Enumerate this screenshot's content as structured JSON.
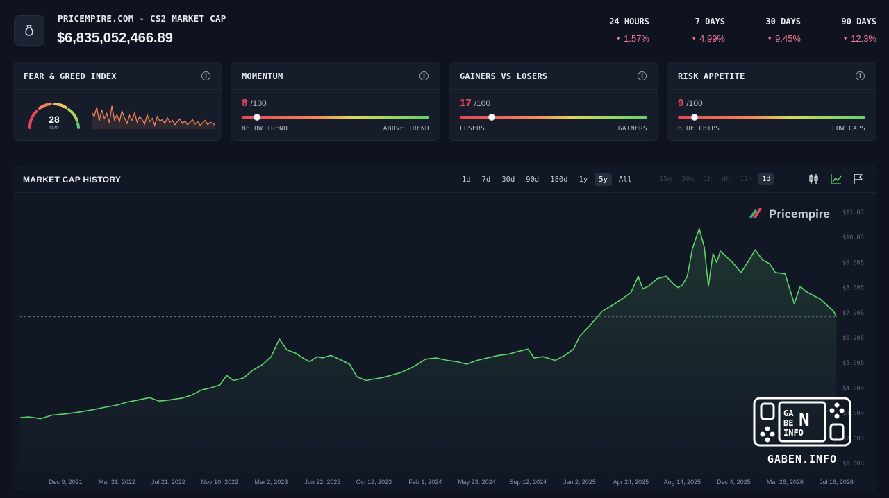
{
  "header": {
    "title": "PRICEMPIRE.COM - CS2 MARKET CAP",
    "market_cap": "$6,835,052,466.89",
    "logo_icon": "money-bag-icon",
    "periods": [
      {
        "label": "24 HOURS",
        "change": "1.57%"
      },
      {
        "label": "7 DAYS",
        "change": "4.99%"
      },
      {
        "label": "30 DAYS",
        "change": "9.45%"
      },
      {
        "label": "90 DAYS",
        "change": "12.3%"
      }
    ],
    "negative_color": "#f07a92"
  },
  "cards": {
    "fear_greed": {
      "title": "FEAR & GREED INDEX",
      "value": "28",
      "label": "FEAR",
      "gauge_fraction": 0.28,
      "sparkline": [
        62,
        55,
        70,
        48,
        66,
        52,
        60,
        45,
        72,
        50,
        58,
        47,
        64,
        53,
        44,
        57,
        49,
        61,
        46,
        55,
        50,
        43,
        58,
        47,
        52,
        41,
        55,
        48,
        50,
        44,
        53,
        46,
        49,
        42,
        47,
        51,
        44,
        48,
        42,
        46,
        50,
        43,
        47,
        41,
        45,
        49,
        42,
        46,
        44,
        41
      ]
    },
    "momentum": {
      "title": "MOMENTUM",
      "value": "8",
      "max": "/100",
      "low": "BELOW TREND",
      "high": "ABOVE TREND"
    },
    "gainers": {
      "title": "GAINERS VS LOSERS",
      "value": "17",
      "max": "/100",
      "low": "LOSERS",
      "high": "GAINERS"
    },
    "risk": {
      "title": "RISK APPETITE",
      "value": "9",
      "max": "/100",
      "low": "BLUE CHIPS",
      "high": "LOW CAPS"
    }
  },
  "panel": {
    "title": "MARKET CAP HISTORY",
    "ranges": [
      "1d",
      "7d",
      "30d",
      "90d",
      "180d",
      "1y",
      "5y",
      "All"
    ],
    "active_range": "5y",
    "intervals": [
      "15m",
      "30m",
      "1h",
      "4h",
      "12h",
      "1d"
    ],
    "active_interval": "1d",
    "brand": "Pricempire",
    "line_color": "#5fd46a"
  },
  "watermark": {
    "text": "GABEN.INFO",
    "logo_letters": [
      "GA",
      "BE",
      "N",
      "INFO"
    ]
  },
  "chart_data": {
    "type": "area",
    "title": "",
    "xlabel": "",
    "ylabel": "",
    "ylim": [
      2.0,
      11.0
    ],
    "y_ticks": [
      "$11.0B",
      "$10.0B",
      "$9.00B",
      "$8.00B",
      "$7.00B",
      "$6.00B",
      "$5.00B",
      "$4.00B",
      "$3.00B",
      "$2.00B",
      "$1.00B"
    ],
    "y_tick_values": [
      11,
      10,
      9,
      8,
      7,
      6,
      5,
      4,
      3,
      2,
      1
    ],
    "x_ticks": [
      "Dec 9, 2021",
      "Mar 31, 2022",
      "Jul 21, 2022",
      "Nov 10, 2022",
      "Mar 2, 2023",
      "Jun 22, 2023",
      "Oct 12, 2023",
      "Feb 1, 2024",
      "May 23, 2024",
      "Sep 12, 2024",
      "Jan 2, 2025",
      "Apr 24, 2025",
      "Aug 14, 2025",
      "Dec 4, 2025",
      "Mar 26, 2026",
      "Jul 16, 2026"
    ],
    "x_tick_values": [
      "2021-12-09",
      "2022-03-31",
      "2022-07-21",
      "2022-11-10",
      "2023-03-02",
      "2023-06-22",
      "2023-10-12",
      "2024-02-01",
      "2024-05-23",
      "2024-09-12",
      "2025-01-02",
      "2025-04-24",
      "2025-08-14",
      "2025-12-04",
      "2026-03-26",
      "2026-07-16"
    ],
    "current_value": 6.84,
    "series": [
      {
        "x": [
          "2021-09-01",
          "2021-09-20",
          "2021-10-15",
          "2021-11-10",
          "2021-12-09",
          "2022-01-10",
          "2022-02-10",
          "2022-03-01",
          "2022-03-31",
          "2022-04-20",
          "2022-05-15",
          "2022-06-10",
          "2022-07-01",
          "2022-07-21",
          "2022-08-20",
          "2022-09-10",
          "2022-10-01",
          "2022-10-20",
          "2022-11-10",
          "2022-11-25",
          "2022-12-10",
          "2023-01-01",
          "2023-01-20",
          "2023-02-10",
          "2023-03-02",
          "2023-03-20",
          "2023-04-05",
          "2023-04-25",
          "2023-05-10",
          "2023-05-25",
          "2023-06-10",
          "2023-06-22",
          "2023-07-10",
          "2023-08-01",
          "2023-08-20",
          "2023-09-05",
          "2023-09-25",
          "2023-10-12",
          "2023-11-01",
          "2023-11-20",
          "2023-12-10",
          "2024-01-01",
          "2024-01-20",
          "2024-02-01",
          "2024-02-25",
          "2024-03-20",
          "2024-04-10",
          "2024-05-01",
          "2024-05-23",
          "2024-06-15",
          "2024-07-10",
          "2024-08-01",
          "2024-08-20",
          "2024-09-12",
          "2024-09-25",
          "2024-10-15",
          "2024-11-10",
          "2024-12-01",
          "2024-12-20",
          "2025-01-02",
          "2025-01-25",
          "2025-02-20",
          "2025-03-15",
          "2025-04-05",
          "2025-04-24",
          "2025-05-10",
          "2025-05-20",
          "2025-06-01",
          "2025-06-20",
          "2025-07-10",
          "2025-07-25",
          "2025-08-05",
          "2025-08-14",
          "2025-08-25",
          "2025-09-05",
          "2025-09-20",
          "2025-10-01",
          "2025-10-10",
          "2025-10-20",
          "2025-10-28",
          "2025-11-05",
          "2025-11-20",
          "2025-12-04",
          "2025-12-20",
          "2026-01-05",
          "2026-01-20",
          "2026-02-05",
          "2026-02-20",
          "2026-03-05",
          "2026-03-26",
          "2026-04-15",
          "2026-04-28",
          "2026-05-10",
          "2026-05-25",
          "2026-06-10",
          "2026-06-25",
          "2026-07-10",
          "2026-07-16"
        ],
        "values": [
          2.82,
          2.85,
          2.78,
          2.92,
          2.97,
          3.05,
          3.15,
          3.22,
          3.32,
          3.43,
          3.52,
          3.62,
          3.48,
          3.52,
          3.6,
          3.72,
          3.92,
          4.0,
          4.12,
          4.5,
          4.3,
          4.4,
          4.7,
          4.92,
          5.25,
          5.95,
          5.52,
          5.38,
          5.2,
          5.05,
          5.25,
          5.2,
          5.3,
          5.12,
          4.95,
          4.45,
          4.3,
          4.36,
          4.42,
          4.52,
          4.62,
          4.8,
          5.0,
          5.15,
          5.2,
          5.1,
          5.05,
          4.95,
          5.1,
          5.2,
          5.3,
          5.35,
          5.45,
          5.55,
          5.2,
          5.25,
          5.1,
          5.3,
          5.55,
          6.05,
          6.5,
          7.05,
          7.3,
          7.55,
          7.8,
          8.45,
          7.95,
          8.05,
          8.35,
          8.45,
          8.15,
          8.0,
          8.1,
          8.45,
          9.55,
          10.35,
          9.6,
          8.05,
          9.35,
          9.0,
          9.45,
          9.2,
          8.95,
          8.6,
          9.05,
          9.5,
          9.1,
          8.95,
          8.6,
          8.55,
          7.35,
          8.05,
          7.85,
          7.7,
          7.55,
          7.3,
          7.05,
          6.84
        ]
      }
    ]
  }
}
